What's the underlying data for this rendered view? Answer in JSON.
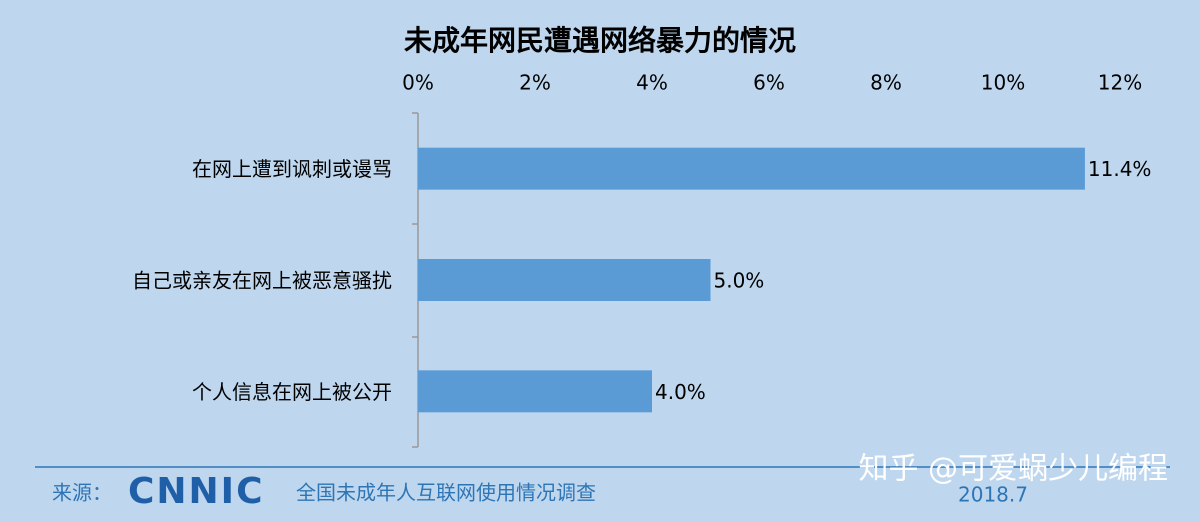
{
  "chart_data": {
    "type": "hbar",
    "title": "未成年网民遭遇网络暴力的情况",
    "categories": [
      "在网上遭到讽刺或谩骂",
      "自己或亲友在网上被恶意骚扰",
      "个人信息在网上被公开"
    ],
    "values": [
      11.4,
      5.0,
      4.0
    ],
    "value_labels": [
      "11.4%",
      "5.0%",
      "4.0%"
    ],
    "color": "#5b9bd5",
    "xlim": [
      0,
      12
    ],
    "xticks": [
      {
        "value": 0,
        "label": "0%"
      },
      {
        "value": 2,
        "label": "2%"
      },
      {
        "value": 4,
        "label": "4%"
      },
      {
        "value": 6,
        "label": "6%"
      },
      {
        "value": 8,
        "label": "8%"
      },
      {
        "value": 10,
        "label": "10%"
      },
      {
        "value": 12,
        "label": "12%"
      }
    ],
    "grid": false
  },
  "footer": {
    "source_label": "来源：",
    "logo": "CNNIC",
    "survey": "全国未成年人互联网使用情况调查",
    "date": "2018.7"
  },
  "watermark": "知乎 @可爱蜗少儿编程"
}
